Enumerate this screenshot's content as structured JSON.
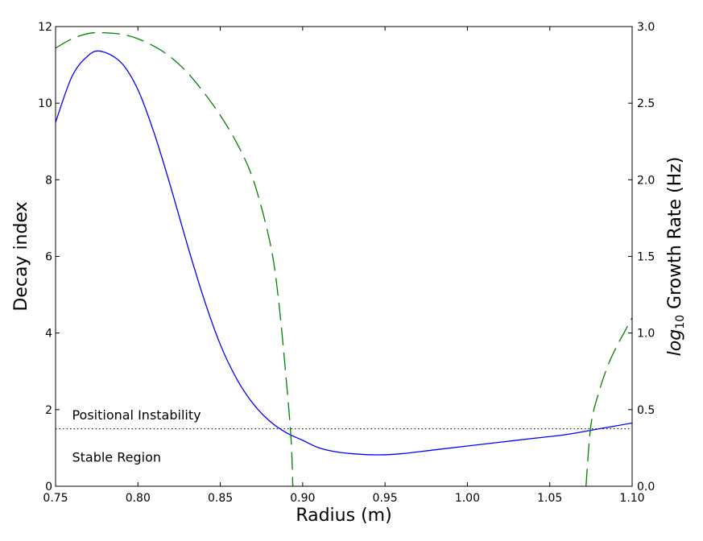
{
  "chart_data": {
    "type": "line",
    "xlabel": "Radius (m)",
    "ylabel_left": "Decay index",
    "ylabel_right": {
      "math": "log",
      "sub": "10",
      "text": " Growth Rate (Hz)"
    },
    "xlim": [
      0.75,
      1.1
    ],
    "ylim_left": [
      0,
      12
    ],
    "ylim_right": [
      0,
      3.0
    ],
    "x_ticks": [
      "0.75",
      "0.80",
      "0.85",
      "0.90",
      "0.95",
      "1.00",
      "1.05",
      "1.10"
    ],
    "y_left_ticks": [
      "0",
      "2",
      "4",
      "6",
      "8",
      "10",
      "12"
    ],
    "y_right_ticks": [
      "0.0",
      "0.5",
      "1.0",
      "1.5",
      "2.0",
      "2.5",
      "3.0"
    ],
    "grid": false,
    "annotations": [
      {
        "text": "Positional Instability",
        "x": 0.76,
        "y": 1.85
      },
      {
        "text": "Stable Region",
        "x": 0.76,
        "y": 0.75
      }
    ],
    "threshold": {
      "y": 1.5,
      "axis": "left",
      "style": "dotted",
      "color": "#000000"
    },
    "series": [
      {
        "axis": "left",
        "color": "#0000ff",
        "style": "solid",
        "x": [
          0.75,
          0.76,
          0.77,
          0.778,
          0.79,
          0.8,
          0.81,
          0.82,
          0.83,
          0.84,
          0.85,
          0.86,
          0.87,
          0.88,
          0.89,
          0.9,
          0.91,
          0.92,
          0.93,
          0.945,
          0.96,
          0.98,
          1.0,
          1.02,
          1.04,
          1.06,
          1.08,
          1.1
        ],
        "y": [
          9.5,
          10.7,
          11.25,
          11.35,
          11.05,
          10.35,
          9.2,
          7.8,
          6.3,
          4.9,
          3.7,
          2.8,
          2.15,
          1.7,
          1.4,
          1.2,
          1.0,
          0.9,
          0.85,
          0.82,
          0.85,
          0.95,
          1.05,
          1.15,
          1.25,
          1.35,
          1.5,
          1.65
        ]
      },
      {
        "axis": "right",
        "color": "#008000",
        "style": "dashed",
        "x": [
          0.75,
          0.76,
          0.77,
          0.778,
          0.79,
          0.8,
          0.81,
          0.82,
          0.83,
          0.84,
          0.85,
          0.86,
          0.87,
          0.88,
          0.885,
          0.89,
          0.893,
          0.894
        ],
        "y": [
          2.86,
          2.92,
          2.955,
          2.96,
          2.95,
          2.92,
          2.87,
          2.8,
          2.7,
          2.57,
          2.42,
          2.24,
          2.0,
          1.6,
          1.25,
          0.7,
          0.3,
          0.0
        ]
      },
      {
        "axis": "right",
        "color": "#008000",
        "style": "dashed",
        "x": [
          1.072,
          1.075,
          1.08,
          1.085,
          1.09,
          1.095,
          1.1
        ],
        "y": [
          0.0,
          0.4,
          0.62,
          0.78,
          0.9,
          1.0,
          1.1
        ]
      }
    ]
  }
}
